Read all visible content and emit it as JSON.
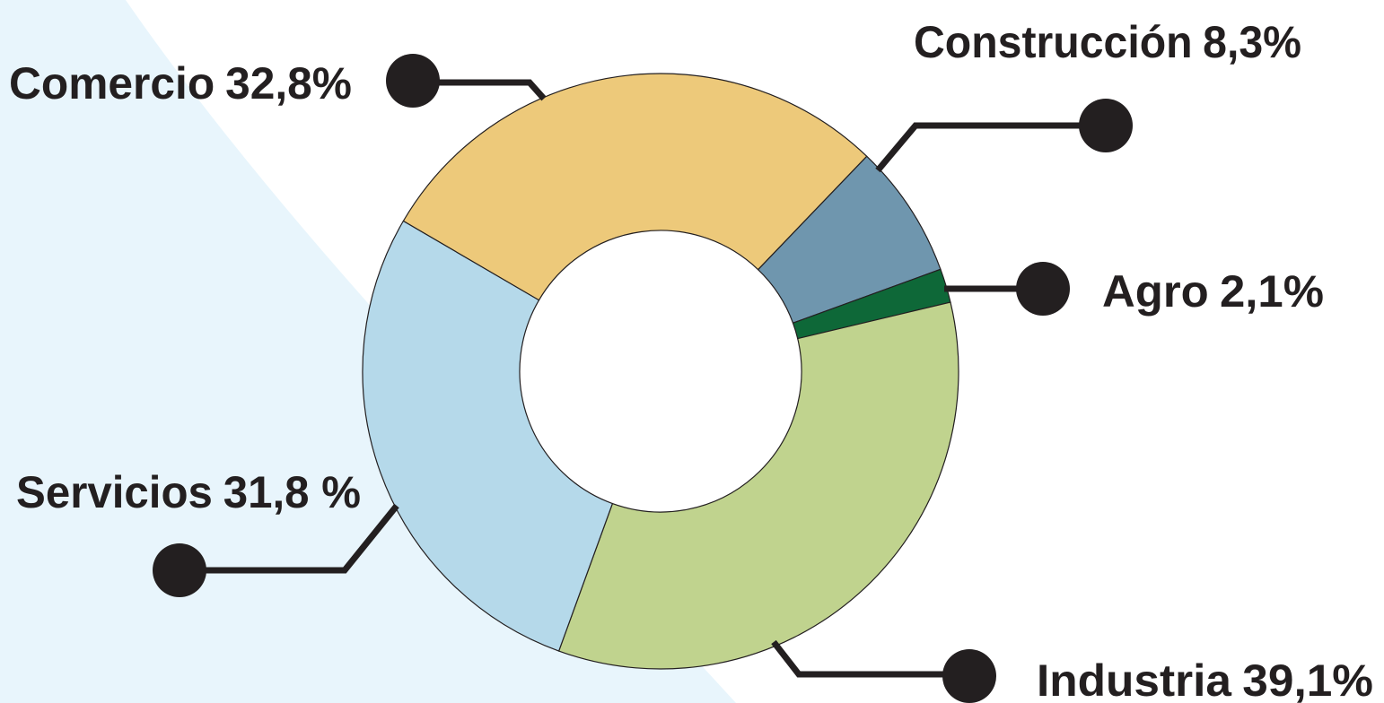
{
  "chart_data": {
    "type": "donut",
    "categories": [
      "Comercio",
      "Construcción",
      "Agro",
      "Industria",
      "Servicios"
    ],
    "values": [
      32.8,
      8.3,
      2.1,
      39.1,
      31.8
    ],
    "value_labels": [
      "32,8%",
      "8,3%",
      "2,1%",
      "39,1%",
      "31,8 %"
    ],
    "colors": [
      "#edc97a",
      "#6f96ae",
      "#0e6838",
      "#c0d38e",
      "#b5d9ea"
    ]
  }
}
